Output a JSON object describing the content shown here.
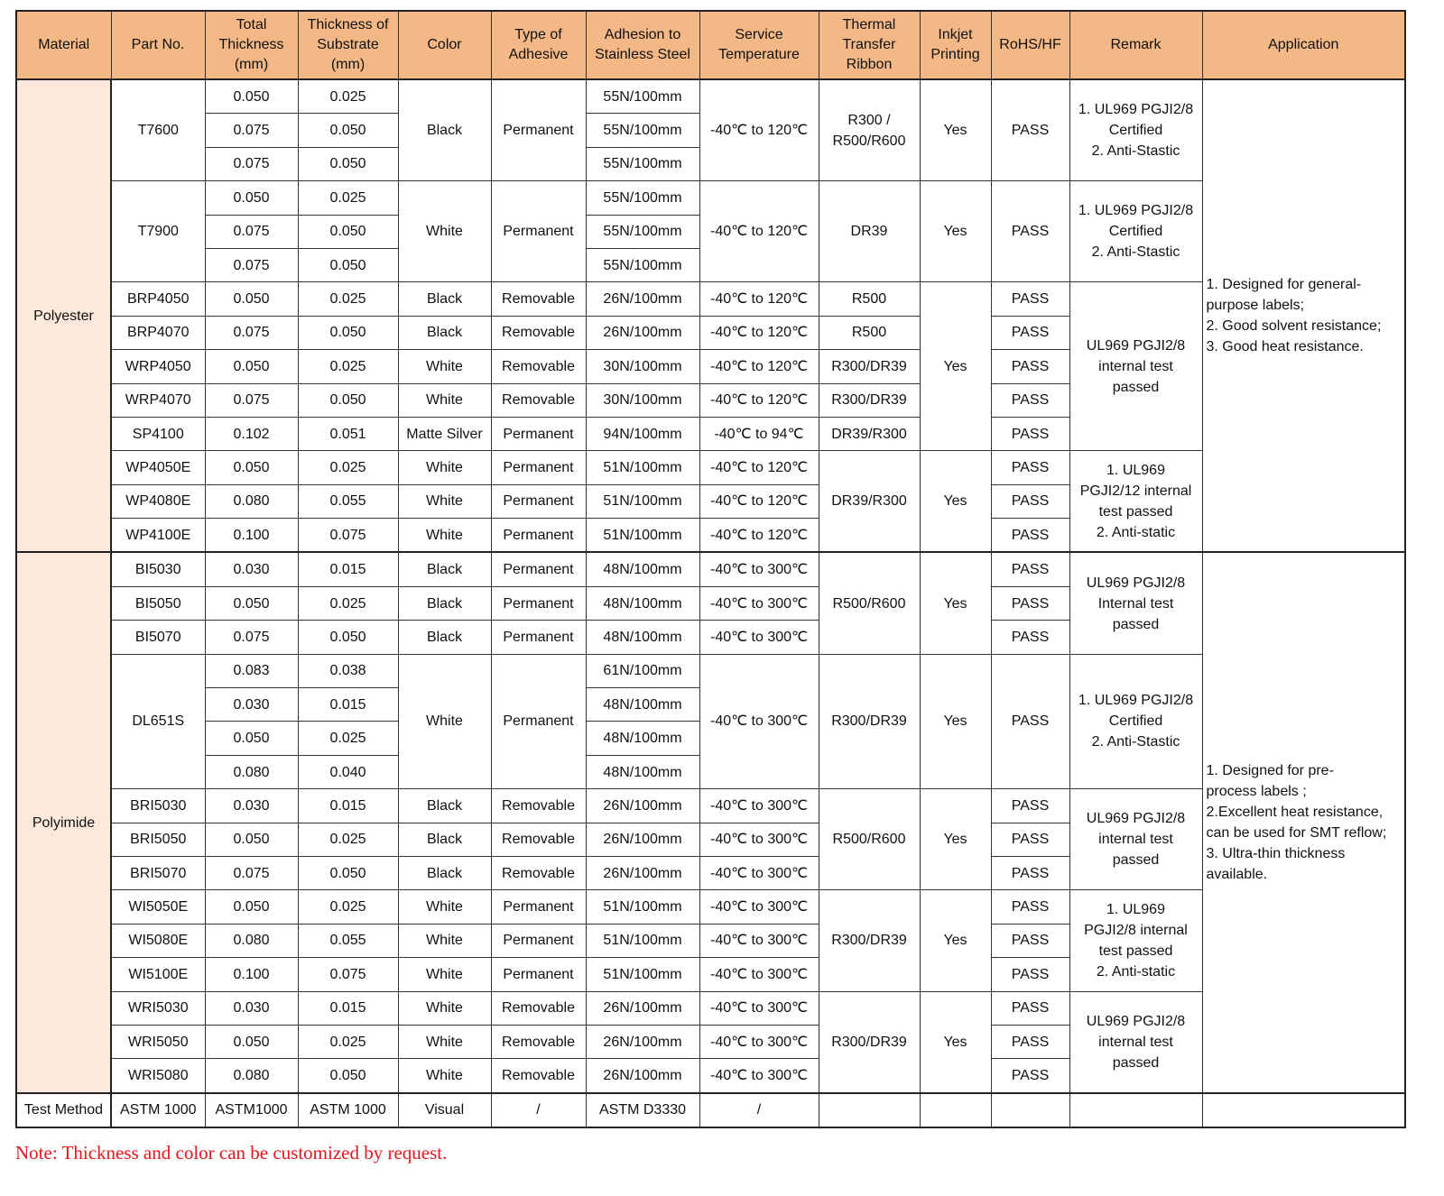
{
  "colors": {
    "header_bg": "#f4b886",
    "material_bg": "#fce9dc",
    "note_text": "#e3161c"
  },
  "table": {
    "headers": [
      "Material",
      "Part No.",
      "Total\nThickness\n(mm)",
      "Thickness of\nSubstrate\n(mm)",
      "Color",
      "Type of\nAdhesive",
      "Adhesion to\nStainless Steel",
      "Service\nTemperature",
      "Thermal\nTransfer\nRibbon",
      "Inkjet\nPrinting",
      "RoHS/HF",
      "Remark",
      "Application"
    ],
    "groups": [
      {
        "rows": [
          [
            {
              "t": "Polyester",
              "rs": 14,
              "c": "mat"
            },
            {
              "t": "T7600",
              "rs": 3
            },
            {
              "t": "0.050"
            },
            {
              "t": "0.025"
            },
            {
              "t": "Black",
              "rs": 3
            },
            {
              "t": "Permanent",
              "rs": 3
            },
            {
              "t": "55N/100mm"
            },
            {
              "t": "-40℃ to 120℃",
              "rs": 3
            },
            {
              "t": "R300 /\nR500/R600",
              "rs": 3
            },
            {
              "t": "Yes",
              "rs": 3
            },
            {
              "t": "PASS",
              "rs": 3
            },
            {
              "t": "1. UL969 PGJI2/8\nCertified\n2. Anti-Stastic",
              "rs": 3
            },
            {
              "t": "1. Designed for general-\npurpose labels;\n2. Good solvent resistance;\n3. Good heat resistance.",
              "rs": 14,
              "c": "app"
            }
          ],
          [
            {
              "t": "0.075"
            },
            {
              "t": "0.050"
            },
            {
              "t": "55N/100mm"
            }
          ],
          [
            {
              "t": "0.075"
            },
            {
              "t": "0.050"
            },
            {
              "t": "55N/100mm"
            }
          ],
          [
            {
              "t": "T7900",
              "rs": 3
            },
            {
              "t": "0.050"
            },
            {
              "t": "0.025"
            },
            {
              "t": "White",
              "rs": 3
            },
            {
              "t": "Permanent",
              "rs": 3
            },
            {
              "t": "55N/100mm"
            },
            {
              "t": "-40℃ to 120℃",
              "rs": 3
            },
            {
              "t": "DR39",
              "rs": 3
            },
            {
              "t": "Yes",
              "rs": 3
            },
            {
              "t": "PASS",
              "rs": 3
            },
            {
              "t": "1. UL969 PGJI2/8\nCertified\n2.  Anti-Stastic",
              "rs": 3
            }
          ],
          [
            {
              "t": "0.075"
            },
            {
              "t": "0.050"
            },
            {
              "t": "55N/100mm"
            }
          ],
          [
            {
              "t": "0.075"
            },
            {
              "t": "0.050"
            },
            {
              "t": "55N/100mm"
            }
          ],
          [
            {
              "t": "BRP4050"
            },
            {
              "t": "0.050"
            },
            {
              "t": "0.025"
            },
            {
              "t": "Black"
            },
            {
              "t": "Removable"
            },
            {
              "t": "26N/100mm"
            },
            {
              "t": "-40℃ to 120℃"
            },
            {
              "t": "R500"
            },
            {
              "t": "Yes",
              "rs": 5
            },
            {
              "t": "PASS"
            },
            {
              "t": "UL969 PGJI2/8\ninternal test\npassed",
              "rs": 5
            }
          ],
          [
            {
              "t": "BRP4070"
            },
            {
              "t": "0.075"
            },
            {
              "t": "0.050"
            },
            {
              "t": "Black"
            },
            {
              "t": "Removable"
            },
            {
              "t": "26N/100mm"
            },
            {
              "t": "-40℃ to 120℃"
            },
            {
              "t": "R500"
            },
            {
              "t": "PASS"
            }
          ],
          [
            {
              "t": "WRP4050"
            },
            {
              "t": "0.050"
            },
            {
              "t": "0.025"
            },
            {
              "t": "White"
            },
            {
              "t": "Removable"
            },
            {
              "t": "30N/100mm"
            },
            {
              "t": "-40℃ to 120℃"
            },
            {
              "t": "R300/DR39"
            },
            {
              "t": "PASS"
            }
          ],
          [
            {
              "t": "WRP4070"
            },
            {
              "t": "0.075"
            },
            {
              "t": "0.050"
            },
            {
              "t": "White"
            },
            {
              "t": "Removable"
            },
            {
              "t": "30N/100mm"
            },
            {
              "t": "-40℃ to 120℃"
            },
            {
              "t": "R300/DR39"
            },
            {
              "t": "PASS"
            }
          ],
          [
            {
              "t": "SP4100"
            },
            {
              "t": "0.102"
            },
            {
              "t": "0.051"
            },
            {
              "t": "Matte Silver"
            },
            {
              "t": "Permanent"
            },
            {
              "t": "94N/100mm"
            },
            {
              "t": "-40℃ to 94℃"
            },
            {
              "t": "DR39/R300"
            },
            {
              "t": "PASS"
            }
          ],
          [
            {
              "t": "WP4050E"
            },
            {
              "t": "0.050"
            },
            {
              "t": "0.025"
            },
            {
              "t": "White"
            },
            {
              "t": "Permanent"
            },
            {
              "t": "51N/100mm"
            },
            {
              "t": "-40℃ to 120℃"
            },
            {
              "t": "DR39/R300",
              "rs": 3
            },
            {
              "t": "Yes",
              "rs": 3
            },
            {
              "t": "PASS"
            },
            {
              "t": "1. UL969\nPGJI2/12 internal\ntest passed\n2. Anti-static",
              "rs": 3
            }
          ],
          [
            {
              "t": "WP4080E"
            },
            {
              "t": "0.080"
            },
            {
              "t": "0.055"
            },
            {
              "t": "White"
            },
            {
              "t": "Permanent"
            },
            {
              "t": "51N/100mm"
            },
            {
              "t": "-40℃ to 120℃"
            },
            {
              "t": "PASS"
            }
          ],
          [
            {
              "t": "WP4100E"
            },
            {
              "t": "0.100"
            },
            {
              "t": "0.075"
            },
            {
              "t": "White"
            },
            {
              "t": "Permanent"
            },
            {
              "t": "51N/100mm"
            },
            {
              "t": "-40℃ to 120℃"
            },
            {
              "t": "PASS"
            }
          ]
        ]
      },
      {
        "rows": [
          [
            {
              "t": "Polyimide",
              "rs": 16,
              "c": "mat"
            },
            {
              "t": "BI5030"
            },
            {
              "t": "0.030"
            },
            {
              "t": "0.015"
            },
            {
              "t": "Black"
            },
            {
              "t": "Permanent"
            },
            {
              "t": "48N/100mm"
            },
            {
              "t": "-40℃ to 300℃"
            },
            {
              "t": "R500/R600",
              "rs": 3
            },
            {
              "t": "Yes",
              "rs": 3
            },
            {
              "t": "PASS"
            },
            {
              "t": "UL969 PGJI2/8\nInternal test\npassed",
              "rs": 3
            },
            {
              "t": "1. Designed for pre-\nprocess labels ;\n2.Excellent heat resistance,\ncan be used for SMT reflow;\n3. Ultra-thin thickness\navailable.",
              "rs": 16,
              "c": "app"
            }
          ],
          [
            {
              "t": "BI5050"
            },
            {
              "t": "0.050"
            },
            {
              "t": "0.025"
            },
            {
              "t": "Black"
            },
            {
              "t": "Permanent"
            },
            {
              "t": "48N/100mm"
            },
            {
              "t": "-40℃ to 300℃"
            },
            {
              "t": "PASS"
            }
          ],
          [
            {
              "t": "BI5070"
            },
            {
              "t": "0.075"
            },
            {
              "t": "0.050"
            },
            {
              "t": "Black"
            },
            {
              "t": "Permanent"
            },
            {
              "t": "48N/100mm"
            },
            {
              "t": "-40℃ to 300℃"
            },
            {
              "t": "PASS"
            }
          ],
          [
            {
              "t": "DL651S",
              "rs": 4
            },
            {
              "t": "0.083"
            },
            {
              "t": "0.038"
            },
            {
              "t": "White",
              "rs": 4
            },
            {
              "t": "Permanent",
              "rs": 4
            },
            {
              "t": "61N/100mm"
            },
            {
              "t": "-40℃ to 300℃",
              "rs": 4
            },
            {
              "t": "R300/DR39",
              "rs": 4
            },
            {
              "t": "Yes",
              "rs": 4
            },
            {
              "t": "PASS",
              "rs": 4
            },
            {
              "t": "1. UL969 PGJI2/8\nCertified\n2.  Anti-Stastic",
              "rs": 4
            }
          ],
          [
            {
              "t": "0.030"
            },
            {
              "t": "0.015"
            },
            {
              "t": "48N/100mm"
            }
          ],
          [
            {
              "t": "0.050"
            },
            {
              "t": "0.025"
            },
            {
              "t": "48N/100mm"
            }
          ],
          [
            {
              "t": "0.080"
            },
            {
              "t": "0.040"
            },
            {
              "t": "48N/100mm"
            }
          ],
          [
            {
              "t": "BRI5030"
            },
            {
              "t": "0.030"
            },
            {
              "t": "0.015"
            },
            {
              "t": "Black"
            },
            {
              "t": "Removable"
            },
            {
              "t": "26N/100mm"
            },
            {
              "t": "-40℃ to 300℃"
            },
            {
              "t": "R500/R600",
              "rs": 3
            },
            {
              "t": "Yes",
              "rs": 3
            },
            {
              "t": "PASS"
            },
            {
              "t": "UL969 PGJI2/8\ninternal test\npassed",
              "rs": 3
            }
          ],
          [
            {
              "t": "BRI5050"
            },
            {
              "t": "0.050"
            },
            {
              "t": "0.025"
            },
            {
              "t": "Black"
            },
            {
              "t": "Removable"
            },
            {
              "t": "26N/100mm"
            },
            {
              "t": "-40℃ to 300℃"
            },
            {
              "t": "PASS"
            }
          ],
          [
            {
              "t": "BRI5070"
            },
            {
              "t": "0.075"
            },
            {
              "t": "0.050"
            },
            {
              "t": "Black"
            },
            {
              "t": "Removable"
            },
            {
              "t": "26N/100mm"
            },
            {
              "t": "-40℃ to 300℃"
            },
            {
              "t": "PASS"
            }
          ],
          [
            {
              "t": "WI5050E"
            },
            {
              "t": "0.050"
            },
            {
              "t": "0.025"
            },
            {
              "t": "White"
            },
            {
              "t": "Permanent"
            },
            {
              "t": "51N/100mm"
            },
            {
              "t": "-40℃ to 300℃"
            },
            {
              "t": "R300/DR39",
              "rs": 3
            },
            {
              "t": "Yes",
              "rs": 3
            },
            {
              "t": "PASS"
            },
            {
              "t": "1.  UL969\nPGJI2/8 internal\ntest passed\n2.  Anti-static",
              "rs": 3
            }
          ],
          [
            {
              "t": "WI5080E"
            },
            {
              "t": "0.080"
            },
            {
              "t": "0.055"
            },
            {
              "t": "White"
            },
            {
              "t": "Permanent"
            },
            {
              "t": "51N/100mm"
            },
            {
              "t": "-40℃ to 300℃"
            },
            {
              "t": "PASS"
            }
          ],
          [
            {
              "t": "WI5100E"
            },
            {
              "t": "0.100"
            },
            {
              "t": "0.075"
            },
            {
              "t": "White"
            },
            {
              "t": "Permanent"
            },
            {
              "t": "51N/100mm"
            },
            {
              "t": "-40℃ to 300℃"
            },
            {
              "t": "PASS"
            }
          ],
          [
            {
              "t": "WRI5030"
            },
            {
              "t": "0.030"
            },
            {
              "t": "0.015"
            },
            {
              "t": "White"
            },
            {
              "t": "Removable"
            },
            {
              "t": "26N/100mm"
            },
            {
              "t": "-40℃ to 300℃"
            },
            {
              "t": "R300/DR39",
              "rs": 3
            },
            {
              "t": "Yes",
              "rs": 3
            },
            {
              "t": "PASS"
            },
            {
              "t": "UL969 PGJI2/8\ninternal test\npassed",
              "rs": 3
            }
          ],
          [
            {
              "t": "WRI5050"
            },
            {
              "t": "0.050"
            },
            {
              "t": "0.025"
            },
            {
              "t": "White"
            },
            {
              "t": "Removable"
            },
            {
              "t": "26N/100mm"
            },
            {
              "t": "-40℃ to 300℃"
            },
            {
              "t": "PASS"
            }
          ],
          [
            {
              "t": "WRI5080"
            },
            {
              "t": "0.080"
            },
            {
              "t": "0.050"
            },
            {
              "t": "White"
            },
            {
              "t": "Removable"
            },
            {
              "t": "26N/100mm"
            },
            {
              "t": "-40℃ to 300℃"
            },
            {
              "t": "PASS"
            }
          ]
        ]
      },
      {
        "rows": [
          [
            {
              "t": "Test Method"
            },
            {
              "t": "ASTM 1000"
            },
            {
              "t": "ASTM1000"
            },
            {
              "t": "ASTM 1000"
            },
            {
              "t": "Visual"
            },
            {
              "t": "/"
            },
            {
              "t": "ASTM D3330"
            },
            {
              "t": "/"
            },
            {
              "t": ""
            },
            {
              "t": ""
            },
            {
              "t": ""
            },
            {
              "t": ""
            },
            {
              "t": ""
            }
          ]
        ]
      }
    ]
  },
  "note": "Note: Thickness  and color can be customized by request."
}
